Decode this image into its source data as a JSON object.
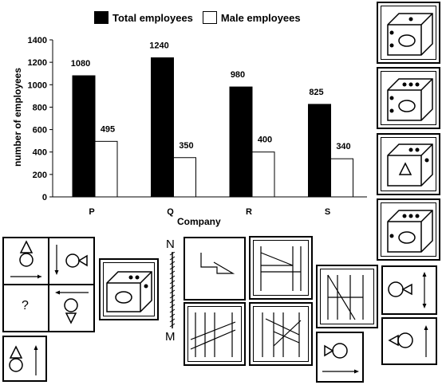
{
  "chart_data": {
    "type": "bar",
    "categories": [
      "P",
      "Q",
      "R",
      "S"
    ],
    "series": [
      {
        "name": "Total employees",
        "values": [
          1080,
          1240,
          980,
          825
        ],
        "color": "#000000"
      },
      {
        "name": "Male employees",
        "values": [
          495,
          350,
          400,
          340
        ],
        "color": "#ffffff"
      }
    ],
    "xlabel": "Company",
    "ylabel": "number of employees",
    "ylim": [
      0,
      1400
    ],
    "yticks": [
      "0",
      "200",
      "400",
      "600",
      "800",
      "1000",
      "1200",
      "1400"
    ],
    "legend": "top",
    "grid": false
  },
  "puzzle": {
    "question_mark": "?",
    "mirror_top_label": "N",
    "mirror_bottom_label": "M"
  },
  "icons": [
    "cube-icon",
    "triangle-icon",
    "circle-icon",
    "arrow-icon"
  ]
}
